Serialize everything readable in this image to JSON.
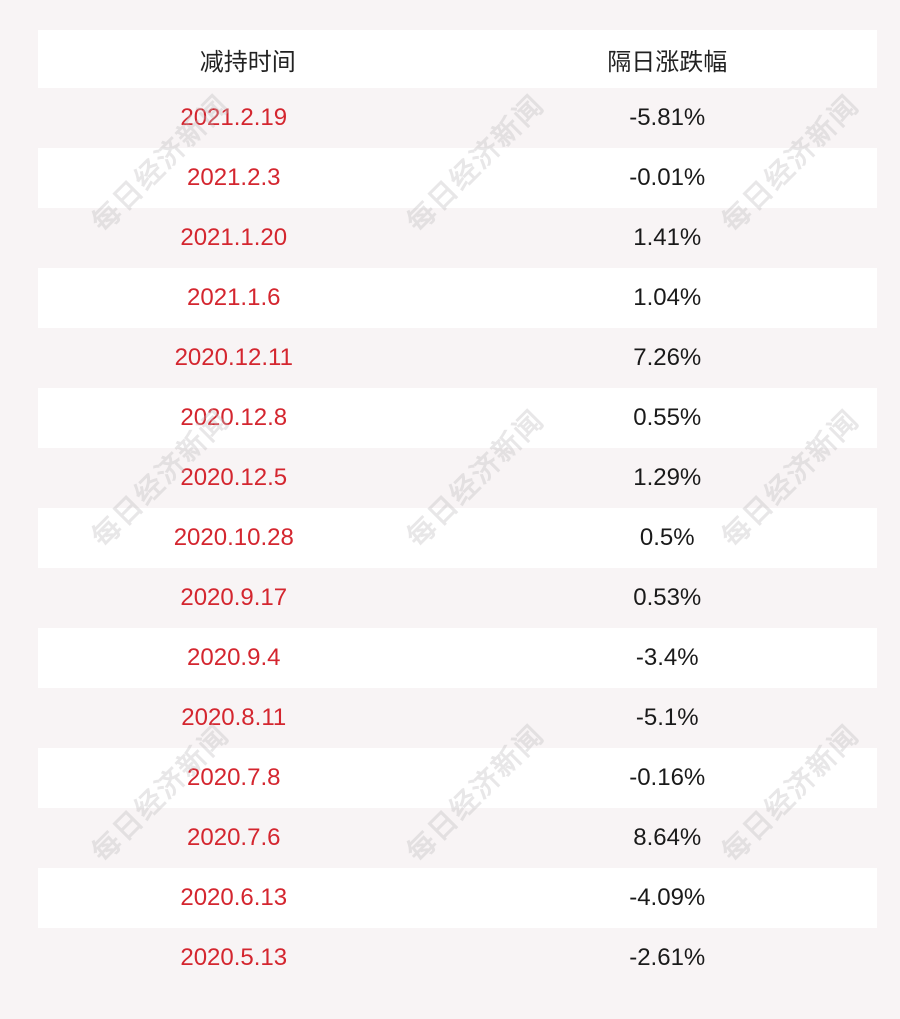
{
  "table": {
    "headers": [
      "减持时间",
      "隔日涨跌幅"
    ],
    "rows": [
      {
        "date": "2021.2.19",
        "change": "-5.81%"
      },
      {
        "date": "2021.2.3",
        "change": "-0.01%"
      },
      {
        "date": "2021.1.20",
        "change": "1.41%"
      },
      {
        "date": "2021.1.6",
        "change": "1.04%"
      },
      {
        "date": "2020.12.11",
        "change": "7.26%"
      },
      {
        "date": "2020.12.8",
        "change": "0.55%"
      },
      {
        "date": "2020.12.5",
        "change": "1.29%"
      },
      {
        "date": "2020.10.28",
        "change": "0.5%"
      },
      {
        "date": "2020.9.17",
        "change": "0.53%"
      },
      {
        "date": "2020.9.4",
        "change": "-3.4%"
      },
      {
        "date": "2020.8.11",
        "change": "-5.1%"
      },
      {
        "date": "2020.7.8",
        "change": "-0.16%"
      },
      {
        "date": "2020.7.6",
        "change": "8.64%"
      },
      {
        "date": "2020.6.13",
        "change": "-4.09%"
      },
      {
        "date": "2020.5.13",
        "change": "-2.61%"
      }
    ]
  },
  "watermark": {
    "text": "每日经济新闻"
  },
  "colors": {
    "date_text": "#d4262f",
    "change_text": "#1a1a1a",
    "stripe": "#f8f4f5"
  }
}
